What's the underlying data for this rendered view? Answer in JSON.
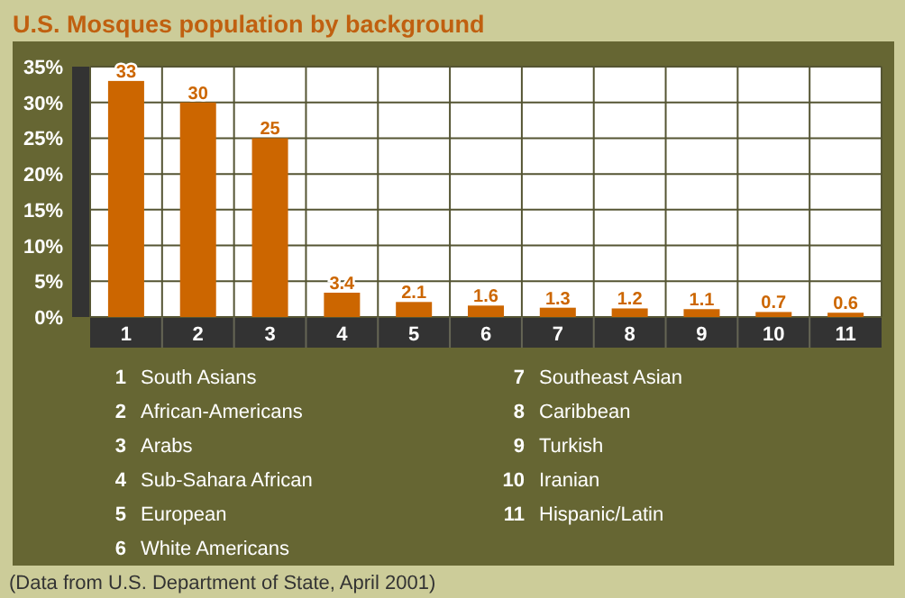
{
  "chart_data": {
    "type": "bar",
    "title": "U.S. Mosques population by background",
    "categories": [
      "1",
      "2",
      "3",
      "4",
      "5",
      "6",
      "7",
      "8",
      "9",
      "10",
      "11"
    ],
    "values": [
      33,
      30,
      25,
      3.4,
      2.1,
      1.6,
      1.3,
      1.2,
      1.1,
      0.7,
      0.6
    ],
    "color": "#cc6600",
    "data_labels": true,
    "grid": true,
    "ylim": [
      0,
      35
    ],
    "yticks": [
      {
        "value": 0,
        "label": "0%"
      },
      {
        "value": 5,
        "label": "5%"
      },
      {
        "value": 10,
        "label": "10%"
      },
      {
        "value": 15,
        "label": "15%"
      },
      {
        "value": 20,
        "label": "20%"
      },
      {
        "value": 25,
        "label": "25%"
      },
      {
        "value": 30,
        "label": "30%"
      },
      {
        "value": 35,
        "label": "35%"
      }
    ],
    "annotations": [
      "South Asians",
      "African-Americans",
      "Arabs",
      "Sub-Sahara African",
      "European",
      "White Americans",
      "Southeast Asian",
      "Caribbean",
      "Turkish",
      "Iranian",
      "Hispanic/Latin",
      "(Data from U.S. Department of State, April 2001)"
    ]
  }
}
